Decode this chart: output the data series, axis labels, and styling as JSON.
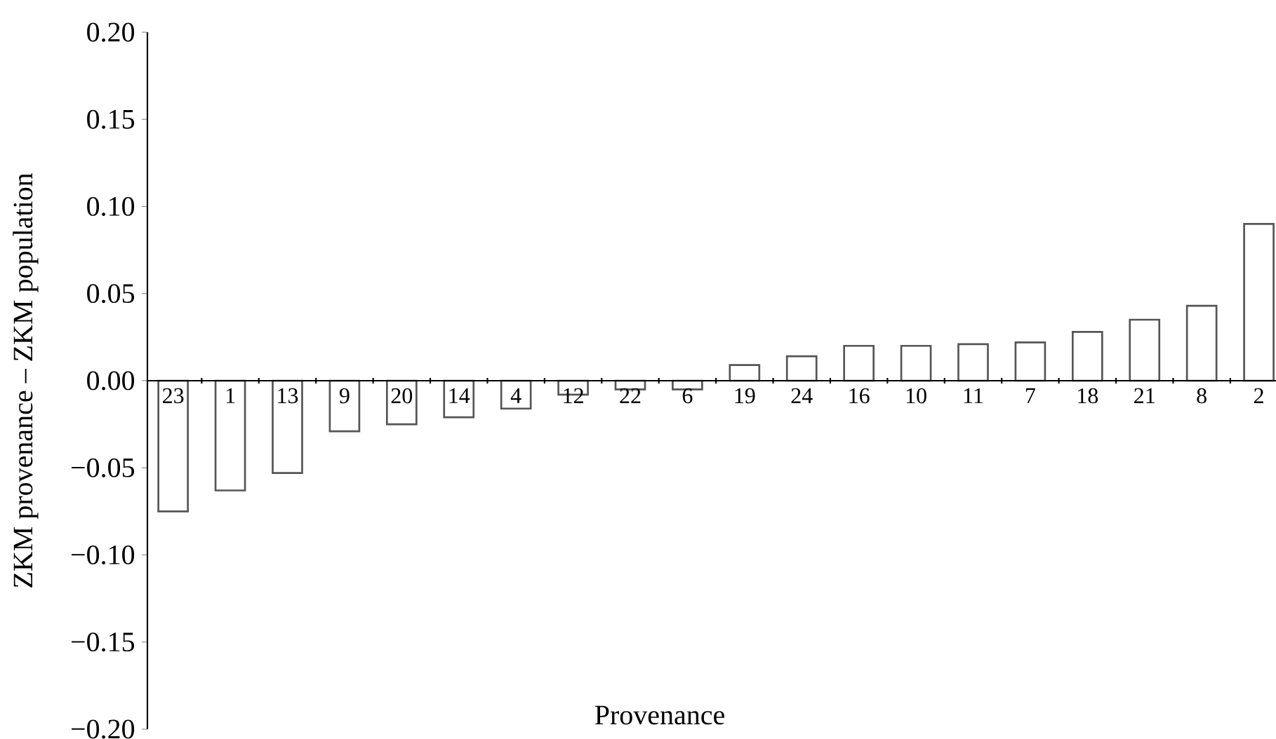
{
  "chart_data": {
    "type": "bar",
    "xlabel": "Provenance",
    "ylabel": "ZKM provenance – ZKM population",
    "categories": [
      "23",
      "1",
      "13",
      "9",
      "20",
      "14",
      "4",
      "12",
      "22",
      "6",
      "19",
      "24",
      "16",
      "10",
      "11",
      "7",
      "18",
      "21",
      "8",
      "2"
    ],
    "values": [
      -0.075,
      -0.063,
      -0.053,
      -0.029,
      -0.025,
      -0.021,
      -0.016,
      -0.008,
      -0.005,
      -0.005,
      0.009,
      0.014,
      0.02,
      0.02,
      0.021,
      0.022,
      0.028,
      0.035,
      0.043,
      0.09
    ],
    "color": "#ffffff",
    "ylim": [
      -0.2,
      0.2
    ],
    "yticks": [
      {
        "value": -0.2,
        "label": "−0.20"
      },
      {
        "value": -0.15,
        "label": "−0.15"
      },
      {
        "value": -0.1,
        "label": "−0.10"
      },
      {
        "value": -0.05,
        "label": "−0.05"
      },
      {
        "value": 0,
        "label": "0.00"
      },
      {
        "value": 0.05,
        "label": "0.05"
      },
      {
        "value": 0.1,
        "label": "0.10"
      },
      {
        "value": 0.15,
        "label": "0.15"
      },
      {
        "value": 0.2,
        "label": "0.20"
      }
    ],
    "grid": false
  }
}
